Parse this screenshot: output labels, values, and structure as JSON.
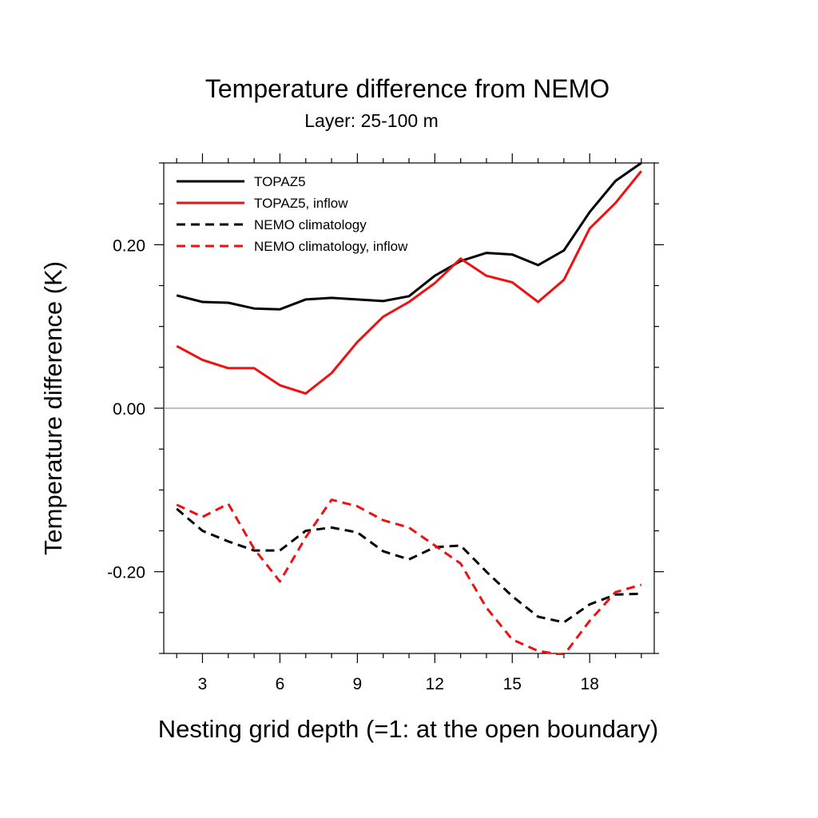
{
  "chart_data": {
    "type": "line",
    "title": "Temperature difference from NEMO",
    "subtitle": "Layer: 25-100 m",
    "xlabel": "Nesting grid depth (=1: at the open boundary)",
    "ylabel": "Temperature difference (K)",
    "xlim": [
      1.5,
      20.5
    ],
    "ylim": [
      -0.3,
      0.3
    ],
    "xticks": [
      3,
      6,
      9,
      12,
      15,
      18
    ],
    "xtick_labels": [
      "3",
      "6",
      "9",
      "12",
      "15",
      "18"
    ],
    "yticks": [
      -0.2,
      0.0,
      0.2
    ],
    "ytick_labels": [
      "-0.20",
      "0.00",
      "0.20"
    ],
    "zero_line": true,
    "legend_position": "top-left",
    "x": [
      2,
      3,
      4,
      5,
      6,
      7,
      8,
      9,
      10,
      11,
      12,
      13,
      14,
      15,
      16,
      17,
      18,
      19,
      20
    ],
    "series": [
      {
        "name": "TOPAZ5",
        "color": "#000000",
        "dash": "solid",
        "values": [
          0.138,
          0.13,
          0.129,
          0.122,
          0.121,
          0.133,
          0.135,
          0.133,
          0.131,
          0.137,
          0.162,
          0.18,
          0.19,
          0.188,
          0.175,
          0.193,
          0.24,
          0.278,
          0.3
        ]
      },
      {
        "name": "TOPAZ5, inflow",
        "color": "#ee1111",
        "dash": "solid",
        "values": [
          0.076,
          0.059,
          0.049,
          0.049,
          0.028,
          0.018,
          0.043,
          0.081,
          0.112,
          0.13,
          0.153,
          0.183,
          0.162,
          0.154,
          0.13,
          0.157,
          0.22,
          0.251,
          0.29
        ]
      },
      {
        "name": "NEMO climatology",
        "color": "#000000",
        "dash": "dashed",
        "values": [
          -0.123,
          -0.15,
          -0.163,
          -0.174,
          -0.174,
          -0.15,
          -0.146,
          -0.152,
          -0.175,
          -0.185,
          -0.17,
          -0.168,
          -0.2,
          -0.23,
          -0.255,
          -0.262,
          -0.24,
          -0.228,
          -0.227
        ]
      },
      {
        "name": "NEMO climatology, inflow",
        "color": "#ee1111",
        "dash": "dashed",
        "values": [
          -0.118,
          -0.133,
          -0.117,
          -0.172,
          -0.212,
          -0.158,
          -0.112,
          -0.12,
          -0.137,
          -0.146,
          -0.168,
          -0.19,
          -0.244,
          -0.283,
          -0.297,
          -0.302,
          -0.26,
          -0.225,
          -0.216
        ]
      }
    ]
  }
}
